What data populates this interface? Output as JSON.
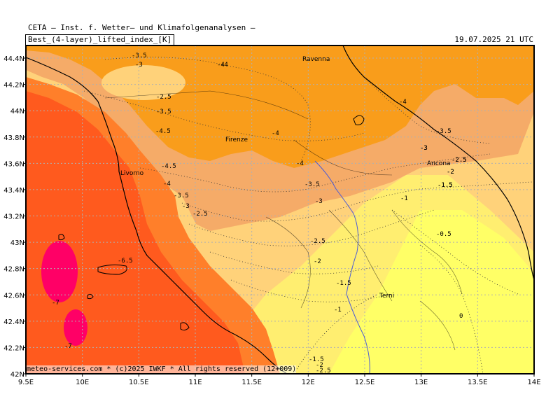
{
  "header": {
    "institute": "CETA — Inst. f. Wetter— und Klimafolgenanalysen —",
    "title": "Best_(4-layer)_lifted_index_[K]",
    "datetime": "19.07.2025 21 UTC"
  },
  "footer": "meteo-services.com * (c)2025 IWKF * All rights reserved (12+009)",
  "axes": {
    "x_ticks": [
      "9.5E",
      "10E",
      "10.5E",
      "11E",
      "11.5E",
      "12E",
      "12.5E",
      "13E",
      "13.5E",
      "14E"
    ],
    "y_ticks": [
      "44.4N",
      "44.2N",
      "44N",
      "43.8N",
      "43.6N",
      "43.4N",
      "43.2N",
      "43N",
      "42.8N",
      "42.6N",
      "42.4N",
      "42.2N",
      "42N"
    ]
  },
  "cities": [
    "Ravenna",
    "Firenze",
    "Livorno",
    "Ancona",
    "Terni"
  ],
  "contour_labels": [
    "-3.5",
    "-3",
    "-4",
    "-2.5",
    "-3.5",
    "-4.5",
    "-4",
    "-4",
    "-4.5",
    "-4",
    "-3.5",
    "-3",
    "-2.5",
    "-3.5",
    "-3",
    "-4",
    "-3.5",
    "-3",
    "-2.5",
    "-2",
    "-1.5",
    "-1",
    "-0.5",
    "0",
    "-1.5",
    "-2",
    "-2.5",
    "-3",
    "-2.5",
    "-2",
    "-1.5",
    "-1",
    "-6.5",
    "-7",
    "-7",
    "-4",
    "-1.5",
    "-2",
    "-2.5"
  ],
  "colors": {
    "c_-7": "#ff0066",
    "c_-6.5": "#ff3300",
    "c_-5": "#ff5a1e",
    "c_-4.5": "#ff7f2a",
    "c_-4": "#f5a040",
    "c_-3.5": "#f5ab68",
    "c_-3": "#f99d1b",
    "c_-2.5": "#ffd27a",
    "c_-2": "#ffe07a",
    "c_-1": "#ffee70",
    "c_0": "#ffff66",
    "coast": "#000000",
    "river": "#4b5bd6",
    "grid": "#b0b0b0"
  }
}
